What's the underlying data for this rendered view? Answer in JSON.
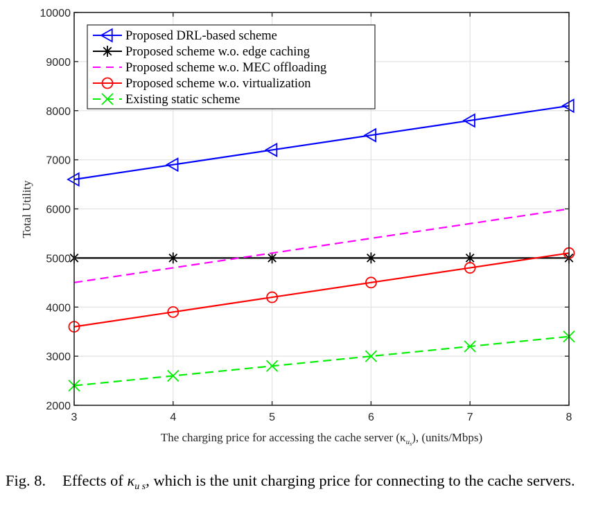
{
  "chart_data": {
    "type": "line",
    "title": "",
    "xlabel": "The charging price for accessing the cache server (κ",
    "xlabel_sub": "u",
    "xlabel_subsub": "s",
    "xlabel_tail": "), (units/Mbps)",
    "ylabel": "Total Utility",
    "xlim": [
      3,
      8
    ],
    "ylim": [
      2000,
      10000
    ],
    "xticks": [
      "3",
      "4",
      "5",
      "6",
      "7",
      "8"
    ],
    "yticks": [
      "2000",
      "3000",
      "4000",
      "5000",
      "6000",
      "7000",
      "8000",
      "9000",
      "10000"
    ],
    "grid": true,
    "legend_position": "top-left",
    "x": [
      3,
      4,
      5,
      6,
      7,
      8
    ],
    "series": [
      {
        "name": "Proposed DRL-based scheme",
        "color": "#0000ff",
        "dash": "solid",
        "marker": "triangle-left",
        "values": [
          6600,
          6900,
          7200,
          7500,
          7800,
          8100
        ]
      },
      {
        "name": "Proposed scheme w.o. edge caching",
        "color": "#000000",
        "dash": "solid",
        "marker": "asterisk",
        "values": [
          5000,
          5000,
          5000,
          5000,
          5000,
          5000
        ]
      },
      {
        "name": "Proposed scheme w.o. MEC offloading",
        "color": "#ff00ff",
        "dash": "dashed",
        "marker": "none",
        "values": [
          4500,
          4800,
          5100,
          5400,
          5700,
          6000
        ]
      },
      {
        "name": "Proposed scheme w.o. virtualization",
        "color": "#ff0000",
        "dash": "solid",
        "marker": "circle",
        "values": [
          3600,
          3900,
          4200,
          4500,
          4800,
          5100
        ]
      },
      {
        "name": "Existing static scheme",
        "color": "#00ee00",
        "dash": "dashed",
        "marker": "x",
        "values": [
          2400,
          2600,
          2800,
          3000,
          3200,
          3400
        ]
      }
    ]
  },
  "caption": {
    "prefix": "Fig. 8.",
    "text_before": "Effects of ",
    "symbol": "κ",
    "symbol_sub": "u s",
    "text_after": ", which is the unit charging price for connecting to the cache servers."
  }
}
